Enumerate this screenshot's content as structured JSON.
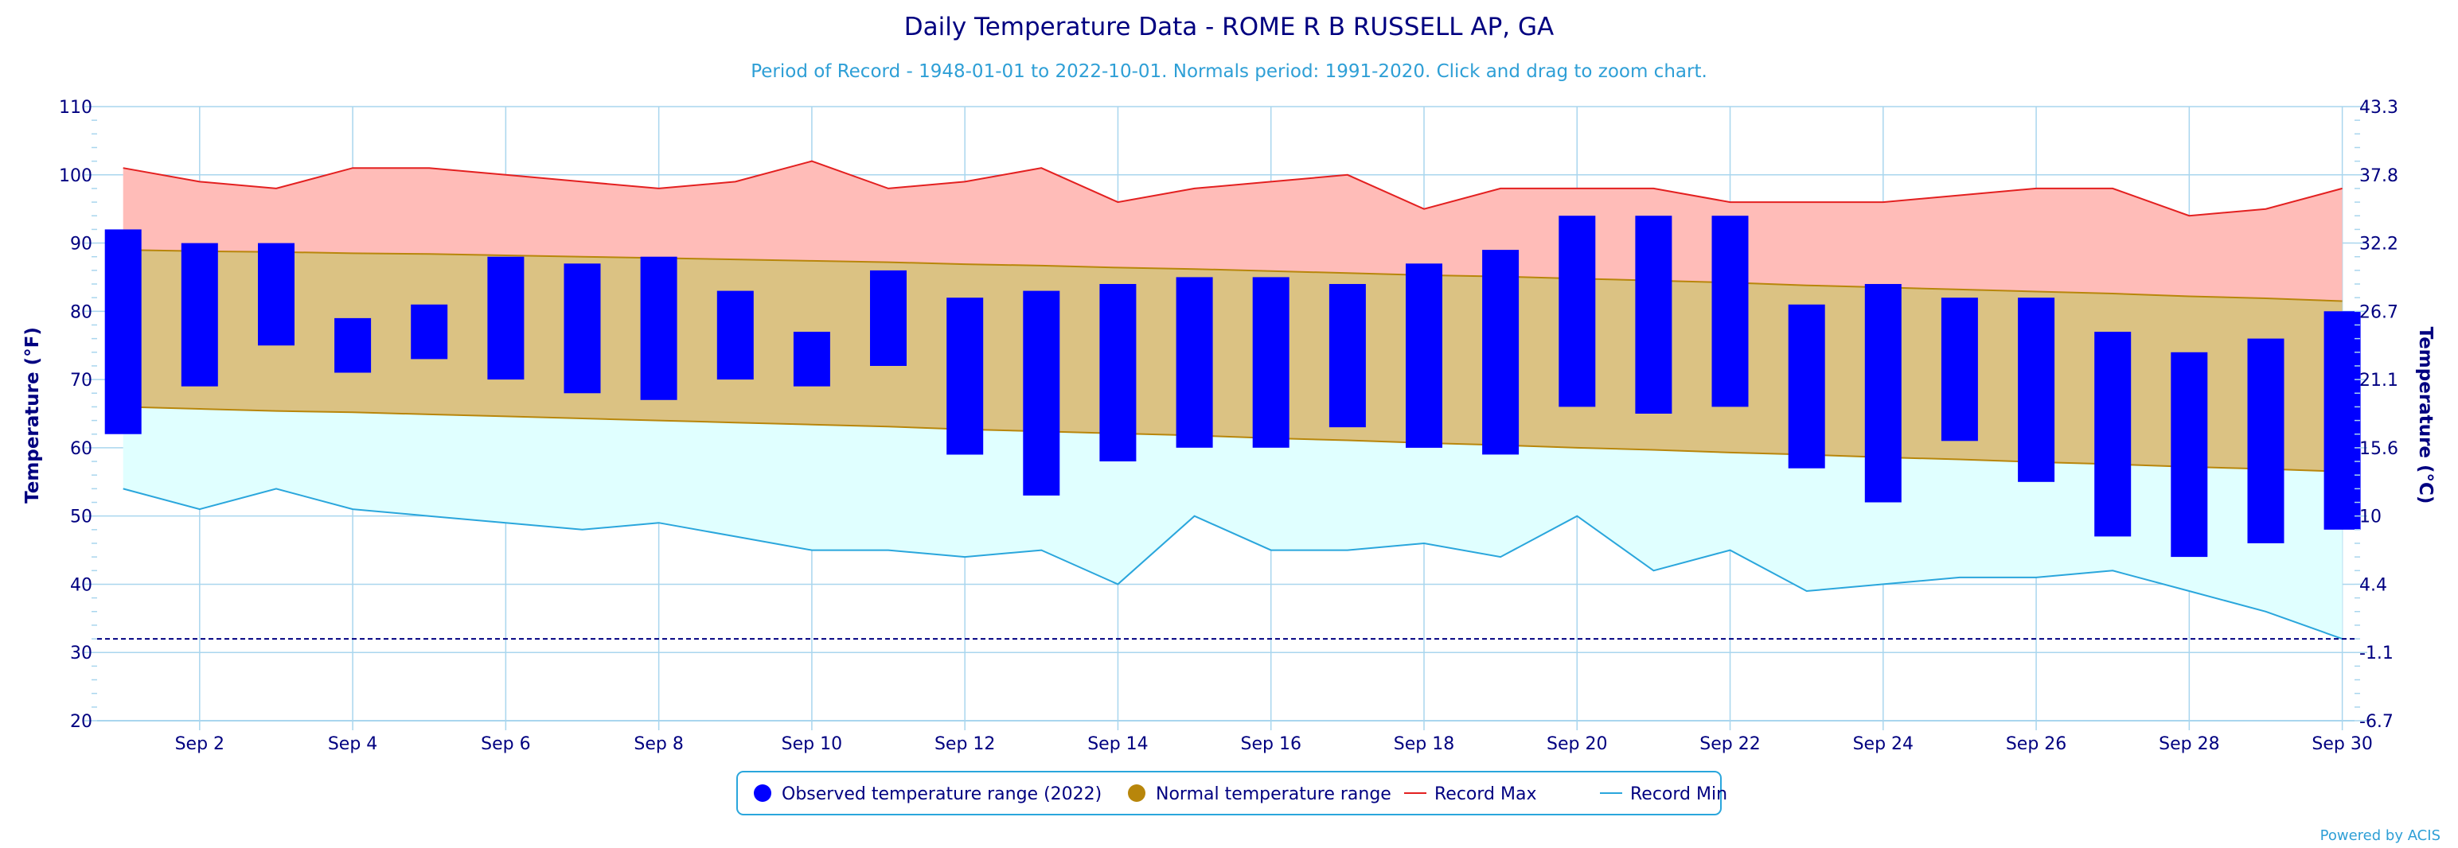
{
  "chart_data": {
    "type": "bar",
    "title": "Daily Temperature Data - ROME R B RUSSELL AP, GA",
    "subtitle": "Period of Record - 1948-01-01 to 2022-10-01. Normals period: 1991-2020. Click and drag to zoom chart.",
    "ylabel": "Temperature (°F)",
    "ylabel_right": "Temperature (°C)",
    "ylim": [
      20,
      110
    ],
    "yticks": [
      20,
      30,
      40,
      50,
      60,
      70,
      80,
      90,
      100,
      110
    ],
    "yticks_right": [
      "-6.7",
      "-1.1",
      "4.4",
      "10",
      "15.6",
      "21.1",
      "26.7",
      "32.2",
      "37.8",
      "43.3"
    ],
    "x_tick_labels": [
      "Sep 2",
      "Sep 4",
      "Sep 6",
      "Sep 8",
      "Sep 10",
      "Sep 12",
      "Sep 14",
      "Sep 16",
      "Sep 18",
      "Sep 20",
      "Sep 22",
      "Sep 24",
      "Sep 26",
      "Sep 28",
      "Sep 30"
    ],
    "x_tick_days": [
      2,
      4,
      6,
      8,
      10,
      12,
      14,
      16,
      18,
      20,
      22,
      24,
      26,
      28,
      30
    ],
    "days": [
      1,
      2,
      3,
      4,
      5,
      6,
      7,
      8,
      9,
      10,
      11,
      12,
      13,
      14,
      15,
      16,
      17,
      18,
      19,
      20,
      21,
      22,
      23,
      24,
      25,
      26,
      27,
      28,
      29,
      30
    ],
    "observed_high": [
      92,
      90,
      90,
      79,
      81,
      88,
      87,
      88,
      83,
      77,
      86,
      82,
      83,
      84,
      85,
      85,
      84,
      87,
      89,
      94,
      94,
      94,
      81,
      84,
      82,
      82,
      77,
      74,
      76,
      80
    ],
    "observed_low": [
      62,
      69,
      75,
      71,
      73,
      70,
      68,
      67,
      70,
      69,
      72,
      59,
      53,
      58,
      60,
      60,
      63,
      60,
      59,
      66,
      65,
      66,
      57,
      52,
      61,
      55,
      47,
      44,
      46,
      48
    ],
    "normal_high": [
      89,
      88.8,
      88.7,
      88.5,
      88.4,
      88.2,
      88,
      87.8,
      87.6,
      87.4,
      87.2,
      86.9,
      86.7,
      86.4,
      86.2,
      85.9,
      85.6,
      85.3,
      85.1,
      84.8,
      84.5,
      84.2,
      83.8,
      83.5,
      83.2,
      82.9,
      82.6,
      82.2,
      81.9,
      81.5
    ],
    "normal_low": [
      66,
      65.7,
      65.4,
      65.2,
      64.9,
      64.6,
      64.3,
      64,
      63.7,
      63.4,
      63.1,
      62.7,
      62.4,
      62.1,
      61.8,
      61.4,
      61.1,
      60.7,
      60.4,
      60,
      59.7,
      59.3,
      59,
      58.6,
      58.3,
      57.9,
      57.6,
      57.2,
      56.9,
      56.5
    ],
    "record_max": [
      101,
      99,
      98,
      101,
      101,
      100,
      99,
      98,
      99,
      102,
      98,
      99,
      101,
      96,
      98,
      99,
      100,
      95,
      98,
      98,
      98,
      96,
      96,
      96,
      97,
      98,
      98,
      94,
      95,
      98
    ],
    "record_min": [
      54,
      51,
      54,
      51,
      50,
      49,
      48,
      49,
      47,
      45,
      45,
      44,
      45,
      40,
      50,
      45,
      45,
      46,
      44,
      50,
      42,
      45,
      39,
      40,
      41,
      41,
      42,
      39,
      36,
      32
    ],
    "freezing_line": 32,
    "legend": [
      {
        "label": "Observed temperature range (2022)",
        "color": "#0000ff",
        "symbol": "circle"
      },
      {
        "label": "Normal temperature range",
        "color": "#b8860b",
        "symbol": "circle"
      },
      {
        "label": "Record Max",
        "color": "#e32020",
        "symbol": "line"
      },
      {
        "label": "Record Min",
        "color": "#2aa6dc",
        "symbol": "line"
      }
    ],
    "legend_position": "bottom-center",
    "grid": true,
    "colors": {
      "observed": "#0000ff",
      "normal_fill": "#dbc283",
      "normal_line": "#b8860b",
      "record_max_line": "#e32020",
      "record_max_fill": "#ffbcb8",
      "record_min_line": "#2aa6dc",
      "record_min_fill": "#e0ffff",
      "grid": "#a9d6ee",
      "text": "#000080"
    }
  },
  "credit": "Powered by ACIS"
}
